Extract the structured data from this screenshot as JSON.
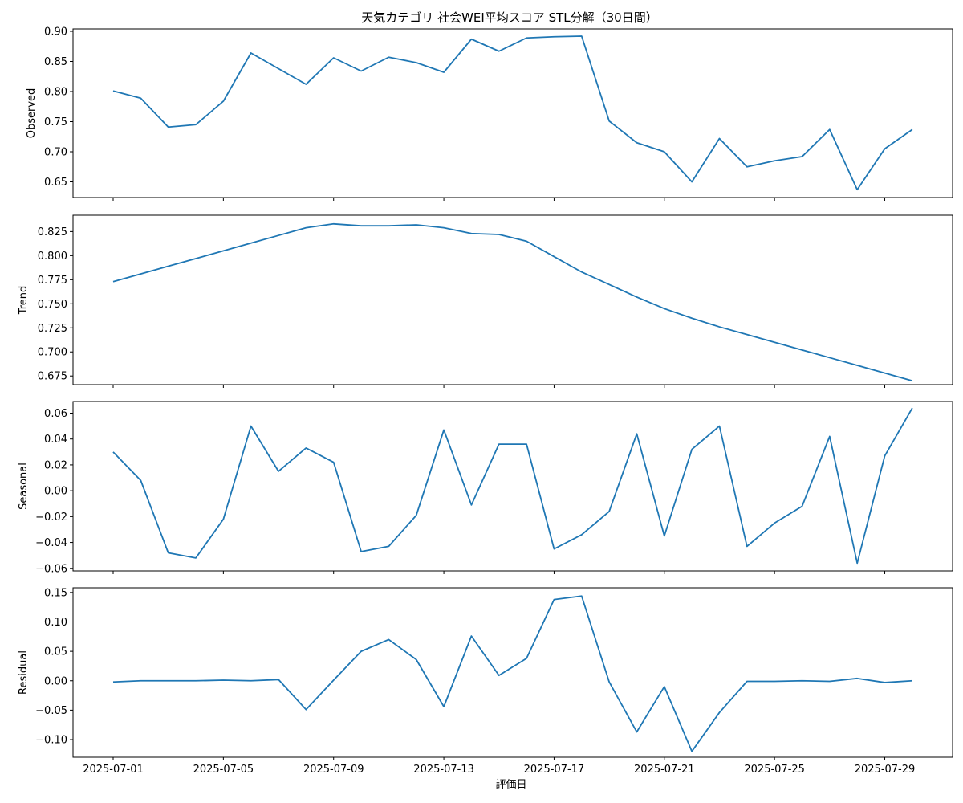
{
  "chart_data": {
    "type": "line",
    "title": "天気カテゴリ 社会WEI平均スコア STL分解（30日間）",
    "xlabel": "評価日",
    "x": [
      "2025-07-01",
      "2025-07-02",
      "2025-07-03",
      "2025-07-04",
      "2025-07-05",
      "2025-07-06",
      "2025-07-07",
      "2025-07-08",
      "2025-07-09",
      "2025-07-10",
      "2025-07-11",
      "2025-07-12",
      "2025-07-13",
      "2025-07-14",
      "2025-07-15",
      "2025-07-16",
      "2025-07-17",
      "2025-07-18",
      "2025-07-19",
      "2025-07-20",
      "2025-07-21",
      "2025-07-22",
      "2025-07-23",
      "2025-07-24",
      "2025-07-25",
      "2025-07-26",
      "2025-07-27",
      "2025-07-28",
      "2025-07-29",
      "2025-07-30"
    ],
    "x_ticks": [
      "2025-07-01",
      "2025-07-05",
      "2025-07-09",
      "2025-07-13",
      "2025-07-17",
      "2025-07-21",
      "2025-07-25",
      "2025-07-29"
    ],
    "color": "#1f77b4",
    "grid": false,
    "panels": [
      {
        "name": "observed",
        "ylabel": "Observed",
        "ylim": [
          0.624,
          0.904
        ],
        "yticks": [
          0.9,
          0.85,
          0.8,
          0.75,
          0.7,
          0.65
        ],
        "ytick_labels": [
          "0.90",
          "0.85",
          "0.80",
          "0.75",
          "0.70",
          "0.65"
        ],
        "values": [
          0.801,
          0.789,
          0.741,
          0.745,
          0.784,
          0.864,
          0.838,
          0.812,
          0.856,
          0.834,
          0.857,
          0.848,
          0.832,
          0.887,
          0.867,
          0.889,
          0.891,
          0.892,
          0.751,
          0.715,
          0.7,
          0.65,
          0.722,
          0.675,
          0.685,
          0.692,
          0.737,
          0.637,
          0.705,
          0.737
        ]
      },
      {
        "name": "trend",
        "ylabel": "Trend",
        "ylim": [
          0.666,
          0.842
        ],
        "yticks": [
          0.825,
          0.8,
          0.775,
          0.75,
          0.725,
          0.7,
          0.675
        ],
        "ytick_labels": [
          "0.825",
          "0.800",
          "0.775",
          "0.750",
          "0.725",
          "0.700",
          "0.675"
        ],
        "values": [
          0.773,
          0.781,
          0.789,
          0.797,
          0.805,
          0.813,
          0.821,
          0.829,
          0.833,
          0.831,
          0.831,
          0.832,
          0.829,
          0.823,
          0.822,
          0.815,
          0.799,
          0.783,
          0.77,
          0.757,
          0.745,
          0.735,
          0.726,
          0.718,
          0.71,
          0.702,
          0.694,
          0.686,
          0.678,
          0.67
        ]
      },
      {
        "name": "seasonal",
        "ylabel": "Seasonal",
        "ylim": [
          -0.062,
          0.069
        ],
        "yticks": [
          0.06,
          0.04,
          0.02,
          0.0,
          -0.02,
          -0.04,
          -0.06
        ],
        "ytick_labels": [
          "0.06",
          "0.04",
          "0.02",
          "0.00",
          "−0.02",
          "−0.04",
          "−0.06"
        ],
        "values": [
          0.03,
          0.008,
          -0.048,
          -0.052,
          -0.022,
          0.05,
          0.015,
          0.033,
          0.022,
          -0.047,
          -0.043,
          -0.019,
          0.047,
          -0.011,
          0.036,
          0.036,
          -0.045,
          -0.034,
          -0.016,
          0.044,
          -0.035,
          0.032,
          0.05,
          -0.043,
          -0.025,
          -0.012,
          0.042,
          -0.056,
          0.027,
          0.064
        ]
      },
      {
        "name": "residual",
        "ylabel": "Residual",
        "ylim": [
          -0.13,
          0.158
        ],
        "yticks": [
          0.15,
          0.1,
          0.05,
          0.0,
          -0.05,
          -0.1
        ],
        "ytick_labels": [
          "0.15",
          "0.10",
          "0.05",
          "0.00",
          "−0.05",
          "−0.10"
        ],
        "values": [
          -0.002,
          0.0,
          0.0,
          0.0,
          0.001,
          0.0,
          0.002,
          -0.049,
          0.001,
          0.05,
          0.07,
          0.036,
          -0.044,
          0.076,
          0.009,
          0.038,
          0.138,
          0.144,
          -0.002,
          -0.087,
          -0.01,
          -0.12,
          -0.054,
          -0.001,
          -0.001,
          0.0,
          -0.001,
          0.004,
          -0.003,
          0.0
        ]
      }
    ]
  }
}
